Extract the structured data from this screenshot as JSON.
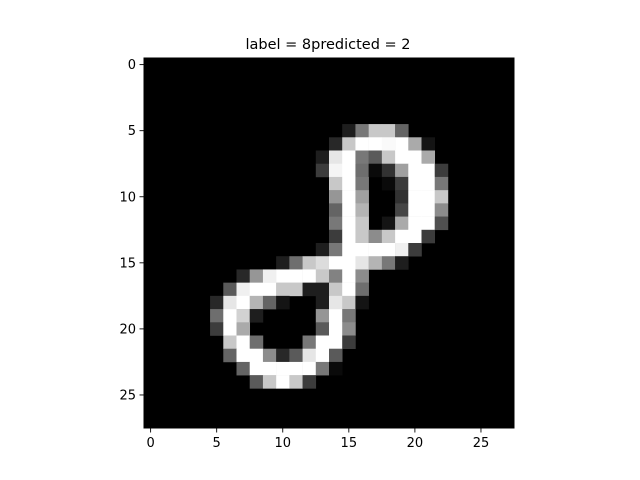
{
  "chart_data": {
    "type": "heatmap",
    "title": "label = 8predicted = 2",
    "colormap": "gray",
    "rows": 28,
    "cols": 28,
    "xlim": [
      -0.5,
      27.5
    ],
    "ylim": [
      27.5,
      -0.5
    ],
    "xticks": [
      0,
      5,
      10,
      15,
      20,
      25
    ],
    "yticks": [
      0,
      5,
      10,
      15,
      20,
      25
    ],
    "grid": false,
    "values_sparse": [
      [
        5,
        15,
        30
      ],
      [
        5,
        16,
        120
      ],
      [
        5,
        17,
        200
      ],
      [
        5,
        18,
        200
      ],
      [
        5,
        19,
        100
      ],
      [
        6,
        14,
        40
      ],
      [
        6,
        15,
        200
      ],
      [
        6,
        16,
        255
      ],
      [
        6,
        17,
        255
      ],
      [
        6,
        18,
        250
      ],
      [
        6,
        19,
        255
      ],
      [
        6,
        20,
        170
      ],
      [
        6,
        21,
        20
      ],
      [
        7,
        13,
        30
      ],
      [
        7,
        14,
        230
      ],
      [
        7,
        15,
        255
      ],
      [
        7,
        16,
        120
      ],
      [
        7,
        17,
        90
      ],
      [
        7,
        18,
        200
      ],
      [
        7,
        19,
        255
      ],
      [
        7,
        20,
        255
      ],
      [
        7,
        21,
        170
      ],
      [
        8,
        13,
        60
      ],
      [
        8,
        14,
        245
      ],
      [
        8,
        15,
        255
      ],
      [
        8,
        16,
        110
      ],
      [
        8,
        17,
        10
      ],
      [
        8,
        18,
        50
      ],
      [
        8,
        19,
        160
      ],
      [
        8,
        20,
        255
      ],
      [
        8,
        21,
        255
      ],
      [
        8,
        22,
        60
      ],
      [
        9,
        14,
        200
      ],
      [
        9,
        15,
        255
      ],
      [
        9,
        16,
        120
      ],
      [
        9,
        18,
        10
      ],
      [
        9,
        19,
        60
      ],
      [
        9,
        20,
        255
      ],
      [
        9,
        21,
        255
      ],
      [
        9,
        22,
        120
      ],
      [
        10,
        14,
        150
      ],
      [
        10,
        15,
        255
      ],
      [
        10,
        16,
        160
      ],
      [
        10,
        19,
        50
      ],
      [
        10,
        20,
        255
      ],
      [
        10,
        21,
        255
      ],
      [
        10,
        22,
        200
      ],
      [
        11,
        14,
        100
      ],
      [
        11,
        15,
        255
      ],
      [
        11,
        16,
        180
      ],
      [
        11,
        19,
        70
      ],
      [
        11,
        20,
        255
      ],
      [
        11,
        21,
        255
      ],
      [
        11,
        22,
        140
      ],
      [
        12,
        14,
        120
      ],
      [
        12,
        15,
        255
      ],
      [
        12,
        16,
        200
      ],
      [
        12,
        18,
        20
      ],
      [
        12,
        19,
        170
      ],
      [
        12,
        20,
        255
      ],
      [
        12,
        21,
        255
      ],
      [
        12,
        22,
        80
      ],
      [
        13,
        14,
        60
      ],
      [
        13,
        15,
        255
      ],
      [
        13,
        16,
        200
      ],
      [
        13,
        17,
        140
      ],
      [
        13,
        18,
        200
      ],
      [
        13,
        19,
        255
      ],
      [
        13,
        20,
        255
      ],
      [
        13,
        21,
        60
      ],
      [
        14,
        13,
        30
      ],
      [
        14,
        14,
        120
      ],
      [
        14,
        15,
        255
      ],
      [
        14,
        16,
        255
      ],
      [
        14,
        17,
        255
      ],
      [
        14,
        18,
        255
      ],
      [
        14,
        19,
        240
      ],
      [
        14,
        20,
        60
      ],
      [
        15,
        10,
        30
      ],
      [
        15,
        11,
        110
      ],
      [
        15,
        12,
        200
      ],
      [
        15,
        13,
        220
      ],
      [
        15,
        14,
        255
      ],
      [
        15,
        15,
        255
      ],
      [
        15,
        16,
        230
      ],
      [
        15,
        17,
        180
      ],
      [
        15,
        18,
        120
      ],
      [
        15,
        19,
        30
      ],
      [
        16,
        7,
        40
      ],
      [
        16,
        8,
        150
      ],
      [
        16,
        9,
        240
      ],
      [
        16,
        10,
        255
      ],
      [
        16,
        11,
        255
      ],
      [
        16,
        12,
        255
      ],
      [
        16,
        13,
        200
      ],
      [
        16,
        14,
        130
      ],
      [
        16,
        15,
        255
      ],
      [
        16,
        16,
        140
      ],
      [
        17,
        6,
        90
      ],
      [
        17,
        7,
        240
      ],
      [
        17,
        8,
        255
      ],
      [
        17,
        9,
        255
      ],
      [
        17,
        10,
        200
      ],
      [
        17,
        11,
        200
      ],
      [
        17,
        12,
        30
      ],
      [
        17,
        13,
        30
      ],
      [
        17,
        14,
        200
      ],
      [
        17,
        15,
        255
      ],
      [
        17,
        16,
        110
      ],
      [
        18,
        5,
        40
      ],
      [
        18,
        6,
        230
      ],
      [
        18,
        7,
        255
      ],
      [
        18,
        8,
        180
      ],
      [
        18,
        9,
        100
      ],
      [
        18,
        10,
        20
      ],
      [
        18,
        13,
        30
      ],
      [
        18,
        14,
        230
      ],
      [
        18,
        15,
        200
      ],
      [
        18,
        16,
        20
      ],
      [
        19,
        5,
        110
      ],
      [
        19,
        6,
        255
      ],
      [
        19,
        7,
        210
      ],
      [
        19,
        8,
        30
      ],
      [
        19,
        13,
        150
      ],
      [
        19,
        14,
        255
      ],
      [
        19,
        15,
        120
      ],
      [
        20,
        5,
        60
      ],
      [
        20,
        6,
        255
      ],
      [
        20,
        7,
        170
      ],
      [
        20,
        13,
        90
      ],
      [
        20,
        14,
        255
      ],
      [
        20,
        15,
        140
      ],
      [
        21,
        6,
        200
      ],
      [
        21,
        7,
        255
      ],
      [
        21,
        8,
        110
      ],
      [
        21,
        12,
        120
      ],
      [
        21,
        13,
        255
      ],
      [
        21,
        14,
        255
      ],
      [
        21,
        15,
        60
      ],
      [
        22,
        6,
        100
      ],
      [
        22,
        7,
        255
      ],
      [
        22,
        8,
        255
      ],
      [
        22,
        9,
        140
      ],
      [
        22,
        10,
        40
      ],
      [
        22,
        11,
        90
      ],
      [
        22,
        12,
        230
      ],
      [
        22,
        13,
        255
      ],
      [
        22,
        14,
        90
      ],
      [
        23,
        7,
        100
      ],
      [
        23,
        8,
        255
      ],
      [
        23,
        9,
        255
      ],
      [
        23,
        10,
        255
      ],
      [
        23,
        11,
        255
      ],
      [
        23,
        12,
        255
      ],
      [
        23,
        13,
        120
      ],
      [
        23,
        14,
        10
      ],
      [
        24,
        8,
        90
      ],
      [
        24,
        9,
        200
      ],
      [
        24,
        10,
        255
      ],
      [
        24,
        11,
        200
      ],
      [
        24,
        12,
        60
      ]
    ]
  }
}
